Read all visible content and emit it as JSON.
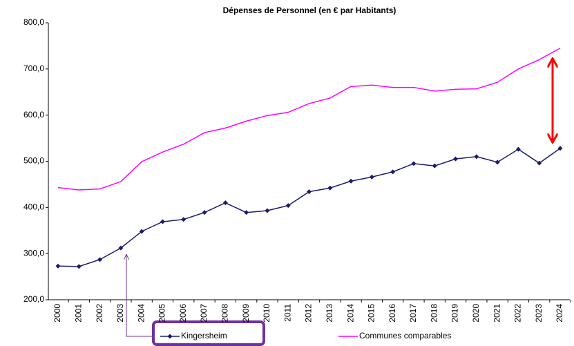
{
  "chart_data": {
    "type": "line",
    "title": "Dépenses de Personnel (en € par Habitants)",
    "categories": [
      "2000",
      "2001",
      "2002",
      "2003",
      "2004",
      "2005",
      "2006",
      "2007",
      "2008",
      "2009",
      "2010",
      "2011",
      "2012",
      "2013",
      "2014",
      "2015",
      "2016",
      "2017",
      "2018",
      "2019",
      "2020",
      "2021",
      "2022",
      "2023",
      "2024"
    ],
    "series": [
      {
        "name": "Kingersheim",
        "color": "#1a1a6e",
        "marker": "diamond",
        "values": [
          273,
          272,
          287,
          312,
          348,
          369,
          374,
          389,
          410,
          389,
          393,
          404,
          434,
          442,
          457,
          466,
          477,
          495,
          490,
          505,
          510,
          498,
          526,
          496,
          528
        ]
      },
      {
        "name": "Communes comparables",
        "color": "#ff00ff",
        "values": [
          443,
          438,
          440,
          456,
          499,
          520,
          537,
          562,
          572,
          587,
          599,
          606,
          625,
          637,
          662,
          665,
          660,
          660,
          652,
          656,
          657,
          671,
          700,
          720,
          745
        ]
      }
    ],
    "ylim": [
      200,
      800
    ],
    "yticks": [
      {
        "value": 200,
        "label": "200,0"
      },
      {
        "value": 300,
        "label": "300,0"
      },
      {
        "value": 400,
        "label": "400,0"
      },
      {
        "value": 500,
        "label": "500,0"
      },
      {
        "value": 600,
        "label": "600,0"
      },
      {
        "value": 700,
        "label": "700,0"
      },
      {
        "value": 800,
        "label": "800,0"
      }
    ],
    "grid": false,
    "legend": "bottom"
  }
}
